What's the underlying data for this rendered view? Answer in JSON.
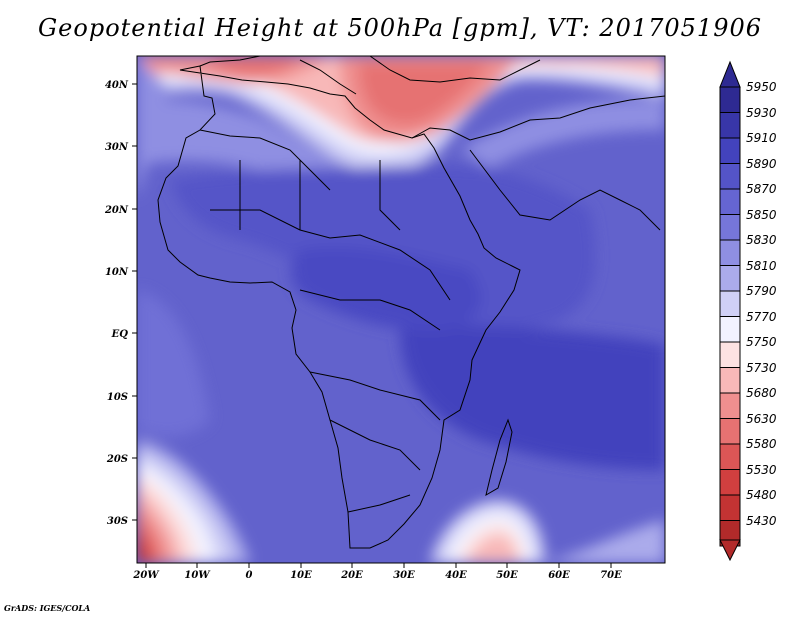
{
  "title": "Geopotential Height at 500hPa [gpm], VT: 2017051906",
  "credit": "GrADS: IGES/COLA",
  "lat_labels": [
    "40N",
    "30N",
    "20N",
    "10N",
    "EQ",
    "10S",
    "20S",
    "30S"
  ],
  "lon_labels": [
    "20W",
    "10W",
    "0",
    "10E",
    "20E",
    "30E",
    "40E",
    "50E",
    "60E",
    "70E"
  ],
  "colorbar": {
    "levels": [
      "5950",
      "5930",
      "5910",
      "5890",
      "5870",
      "5850",
      "5830",
      "5810",
      "5790",
      "5770",
      "5750",
      "5730",
      "5680",
      "5630",
      "5580",
      "5530",
      "5480",
      "5430"
    ],
    "colors": [
      "#2e2a92",
      "#3836a8",
      "#4343bd",
      "#5454c8",
      "#6565d2",
      "#7676da",
      "#8f8fe2",
      "#ababeb",
      "#d0d0f6",
      "#f2f2ff",
      "#fde2e2",
      "#f8b8b8",
      "#ef8f8f",
      "#e67272",
      "#dc5656",
      "#d13f3f",
      "#c33333",
      "#b22a2a"
    ]
  }
}
